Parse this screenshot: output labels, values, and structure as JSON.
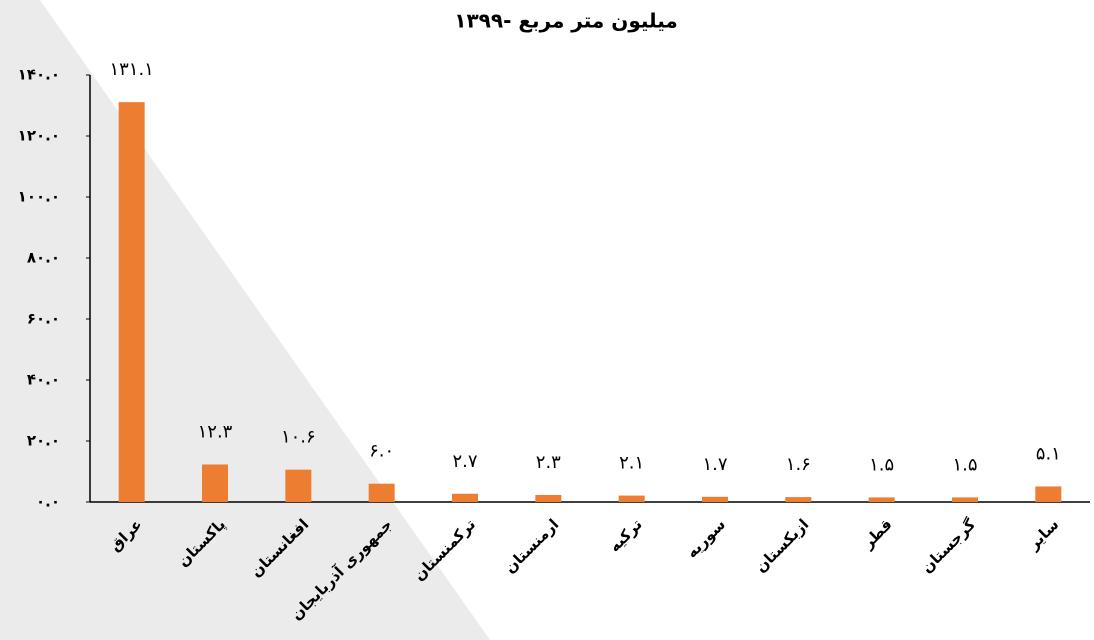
{
  "chart_data": {
    "type": "bar",
    "title": "۱۳۹۹- میلیون متر مربع",
    "categories": [
      "عراق",
      "پاکستان",
      "افغانستان",
      "جمهوری آذربایجان",
      "ترکمنستان",
      "ارمنستان",
      "ترکیه",
      "سوریه",
      "ازبکستان",
      "قطر",
      "گرجستان",
      "سایر"
    ],
    "values": [
      131.1,
      12.3,
      10.6,
      6.0,
      2.7,
      2.3,
      2.1,
      1.7,
      1.6,
      1.5,
      1.5,
      5.1
    ],
    "value_labels": [
      "۱۳۱.۱",
      "۱۲.۳",
      "۱۰.۶",
      "۶.۰",
      "۲.۷",
      "۲.۳",
      "۲.۱",
      "۱.۷",
      "۱.۶",
      "۱.۵",
      "۱.۵",
      "۵.۱"
    ],
    "color": "#ed7d31",
    "ylim": [
      0,
      140
    ],
    "yticks": [
      {
        "value": 0,
        "label": "۰.۰"
      },
      {
        "value": 20,
        "label": "۲۰.۰"
      },
      {
        "value": 40,
        "label": "۴۰.۰"
      },
      {
        "value": 60,
        "label": "۶۰.۰"
      },
      {
        "value": 80,
        "label": "۸۰.۰"
      },
      {
        "value": 100,
        "label": "۱۰۰.۰"
      },
      {
        "value": 120,
        "label": "۱۲۰.۰"
      },
      {
        "value": 140,
        "label": "۱۴۰.۰"
      }
    ],
    "grid": false
  }
}
